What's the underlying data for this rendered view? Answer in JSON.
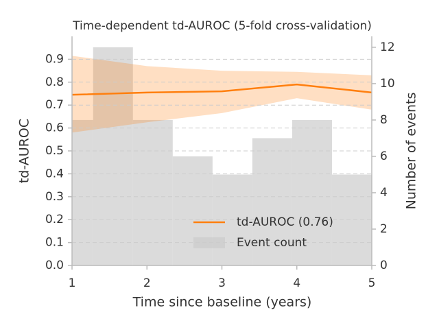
{
  "chart_data": {
    "type": "combo",
    "title": "Time-dependent td-AUROC (5-fold cross-validation)",
    "x_label": "Time since baseline (years)",
    "y_label": "td-AUROC",
    "y2_label": "Number of events",
    "xlim": [
      1,
      5
    ],
    "xticks": [
      1,
      2,
      3,
      4,
      5
    ],
    "ylim": [
      0,
      1.0
    ],
    "yticks": [
      {
        "value": 0,
        "label": "0.0"
      },
      0.1,
      0.2,
      0.3,
      0.4,
      0.5,
      0.6,
      0.7,
      0.8,
      0.9
    ],
    "y2lim": [
      0,
      12.6
    ],
    "y2ticks": [
      0,
      2,
      4,
      6,
      8,
      10,
      12
    ],
    "grid": true,
    "legend": "lower right",
    "histogram": {
      "name": "Event count",
      "color": "#cccccc",
      "axis": "y2",
      "bins": [
        0.75,
        1.28125,
        1.8125,
        2.34375,
        2.875,
        3.40625,
        3.9375,
        4.46875,
        5.0
      ],
      "counts": [
        8,
        12,
        8,
        6,
        5,
        7,
        8,
        5
      ]
    },
    "series": [
      {
        "name": "td-AUROC (0.76)",
        "color": "#ff7f0e",
        "x": [
          1,
          2,
          3,
          4,
          5
        ],
        "values": [
          0.745,
          0.755,
          0.76,
          0.79,
          0.755
        ],
        "lower": [
          0.58,
          0.625,
          0.665,
          0.73,
          0.68
        ],
        "upper": [
          0.915,
          0.87,
          0.85,
          0.845,
          0.83
        ]
      }
    ]
  }
}
